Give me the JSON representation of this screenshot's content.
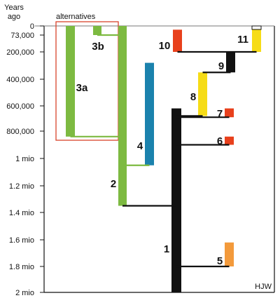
{
  "header": {
    "axis_title": "Years\nago",
    "alternatives_label": "alternatives",
    "credit": "HJW"
  },
  "axis": {
    "tick_labels": [
      "0",
      "73,000",
      "200,000",
      "400,000",
      "600,000",
      "800,000",
      "1 mio",
      "1.2 mio",
      "1.4 mio",
      "1.6 mio",
      "1.8 mio",
      "2 mio"
    ],
    "tick_values": [
      0,
      73000,
      200000,
      400000,
      600000,
      800000,
      1000000,
      1200000,
      1400000,
      1600000,
      1800000,
      2000000
    ]
  },
  "colors": {
    "green": "#7dba41",
    "blue": "#1b82ad",
    "black": "#111111",
    "red": "#e8401c",
    "orange": "#f39a3b",
    "yellow": "#f6dc16",
    "alternatives_box": "#d9432b"
  },
  "branches": [
    {
      "label": "1",
      "color": "black",
      "from": 620000,
      "to": 2000000
    },
    {
      "label": "2",
      "color": "green",
      "from": 0,
      "to": 1350000
    },
    {
      "label": "3a",
      "color": "green",
      "from": 0,
      "to": 840000
    },
    {
      "label": "3b",
      "color": "green",
      "from": 0,
      "to": 73000
    },
    {
      "label": "4",
      "color": "blue",
      "from": 280000,
      "to": 1050000
    },
    {
      "label": "5",
      "color": "orange",
      "from": 1620000,
      "to": 1800000
    },
    {
      "label": "6",
      "color": "red",
      "from": 840000,
      "to": 900000
    },
    {
      "label": "7",
      "color": "red",
      "from": 620000,
      "to": 690000
    },
    {
      "label": "8",
      "color": "yellow",
      "from": 350000,
      "to": 680000
    },
    {
      "label": "9",
      "color": "black",
      "from": 200000,
      "to": 350000
    },
    {
      "label": "10",
      "color": "red",
      "from": 30000,
      "to": 200000
    },
    {
      "label": "11",
      "color": "yellow",
      "from": 0,
      "to": 200000
    }
  ],
  "splits": [
    {
      "from": "1",
      "to": "2",
      "at": 1350000
    },
    {
      "from": "2",
      "to": "3a",
      "at": 840000
    },
    {
      "from": "2",
      "to": "3b",
      "at": 73000
    },
    {
      "from": "2",
      "to": "4",
      "at": 1050000
    },
    {
      "from": "1",
      "to": "5",
      "at": 1800000
    },
    {
      "from": "1",
      "to": "6",
      "at": 900000
    },
    {
      "from": "1",
      "to": "7",
      "at": 690000
    },
    {
      "from": "1",
      "to": "8",
      "at": 680000
    },
    {
      "from": "8",
      "to": "9",
      "at": 350000
    },
    {
      "from": "9",
      "to": "10",
      "at": 200000
    },
    {
      "from": "9",
      "to": "11",
      "at": 200000
    }
  ]
}
